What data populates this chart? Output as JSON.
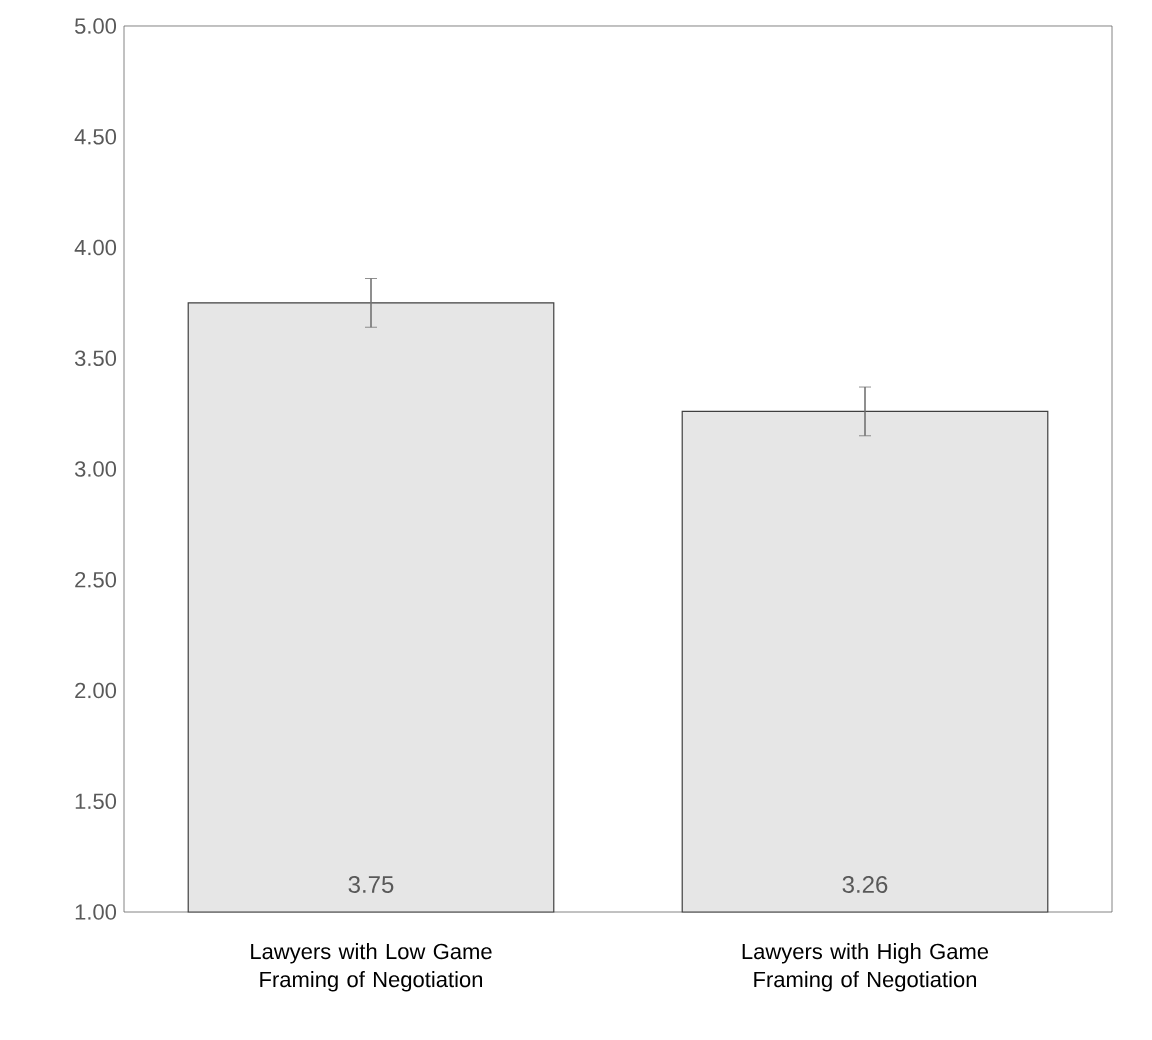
{
  "chart_data": {
    "type": "bar",
    "categories": [
      "Lawyers with Low Game Framing of Negotiation",
      "Lawyers with High Game Framing of Negotiation"
    ],
    "values": [
      3.75,
      3.26
    ],
    "errors": [
      0.11,
      0.11
    ],
    "color": "#e6e6e6",
    "ylim": [
      1,
      5
    ],
    "yticks": [
      {
        "value": 1,
        "label": "1.00"
      },
      {
        "value": 1.5,
        "label": "1.50"
      },
      {
        "value": 2,
        "label": "2.00"
      },
      {
        "value": 2.5,
        "label": "2.50"
      },
      {
        "value": 3,
        "label": "3.00"
      },
      {
        "value": 3.5,
        "label": "3.50"
      },
      {
        "value": 4,
        "label": "4.00"
      },
      {
        "value": 4.5,
        "label": "4.50"
      },
      {
        "value": 5,
        "label": "5.00"
      }
    ],
    "data_labels": true
  }
}
